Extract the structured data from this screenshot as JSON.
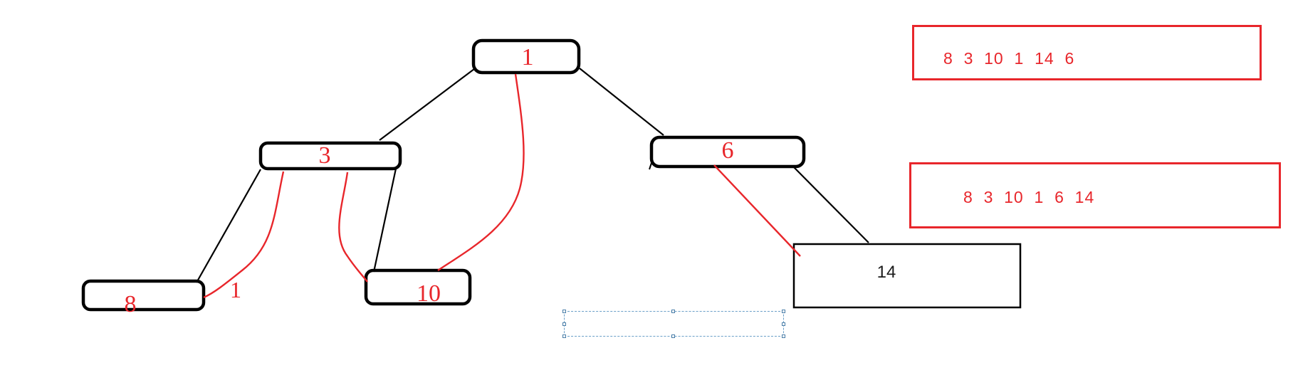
{
  "tree": {
    "nodes": [
      {
        "id": "n1",
        "label": "1"
      },
      {
        "id": "n3",
        "label": "3"
      },
      {
        "id": "n6",
        "label": "6"
      },
      {
        "id": "n8",
        "label": "8"
      },
      {
        "id": "n10",
        "label": "10"
      },
      {
        "id": "n14",
        "label": "14"
      }
    ],
    "edges": [
      {
        "from": "n1",
        "to": "n3"
      },
      {
        "from": "n1",
        "to": "n6"
      },
      {
        "from": "n3",
        "to": "n8"
      },
      {
        "from": "n3",
        "to": "n10"
      },
      {
        "from": "n6",
        "to": "n14"
      }
    ],
    "annotation_paths": [
      {
        "from": "n3",
        "to": "n8"
      },
      {
        "from": "n3",
        "to": "n10"
      },
      {
        "from": "n1",
        "to": "n10"
      },
      {
        "from": "n6",
        "to": "n14"
      }
    ],
    "edge_annotation": "1"
  },
  "sequences": {
    "first": "8  3  10  1  14  6",
    "second": "8  3  10  1  6  14"
  },
  "colors": {
    "structure": "#000000",
    "annotation": "#e8262b",
    "selection": "#6a9fc8"
  }
}
